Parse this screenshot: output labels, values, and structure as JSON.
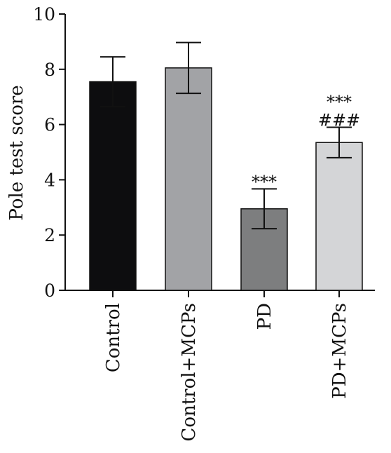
{
  "chart_data": {
    "type": "bar",
    "title": "",
    "xlabel": "",
    "ylabel": "Pole test score",
    "ylim": [
      0,
      10
    ],
    "yticks": [
      0,
      2,
      4,
      6,
      8,
      10
    ],
    "grid": false,
    "legend": "none",
    "categories": [
      "Control",
      "Control+MCPs",
      "PD",
      "PD+MCPs"
    ],
    "values": [
      7.55,
      8.05,
      2.95,
      5.35
    ],
    "errors": [
      0.9,
      0.92,
      0.72,
      0.55
    ],
    "bar_colors": [
      "#0d0d0f",
      "#a2a3a6",
      "#7d7e7f",
      "#d4d5d7"
    ],
    "annotations": [
      [],
      [],
      [
        "***"
      ],
      [
        "***",
        "###"
      ]
    ]
  }
}
